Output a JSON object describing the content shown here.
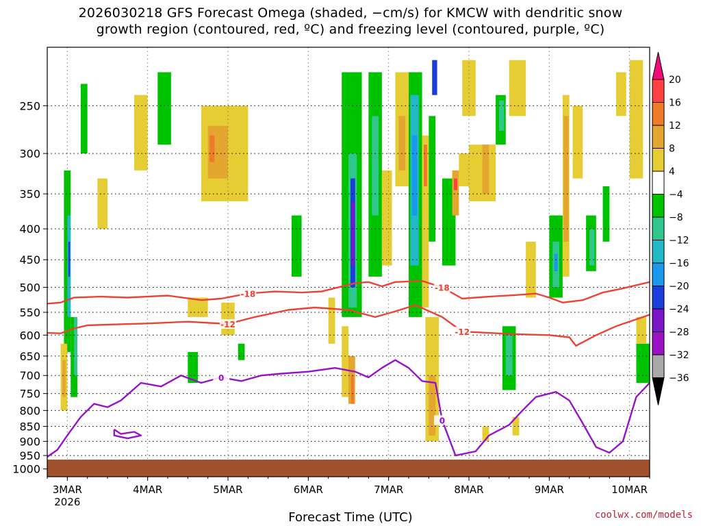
{
  "chart_data": {
    "type": "heatmap",
    "title_line1": "2026030218 GFS Forecast Omega (shaded, −cm/s) for KMCW with dendritic snow",
    "title_line2": "growth region (contoured, red, ºC) and freezing level (contoured, purple, ºC)",
    "xlabel": "Forecast Time (UTC)",
    "year_label": "2026",
    "credit": "coolwx.com/models",
    "x_ticks": [
      {
        "label": "3MAR",
        "t": 6
      },
      {
        "label": "4MAR",
        "t": 30
      },
      {
        "label": "5MAR",
        "t": 54
      },
      {
        "label": "6MAR",
        "t": 78
      },
      {
        "label": "7MAR",
        "t": 102
      },
      {
        "label": "8MAR",
        "t": 126
      },
      {
        "label": "9MAR",
        "t": 150
      },
      {
        "label": "10MAR",
        "t": 174
      }
    ],
    "x_range_hours": [
      0,
      180
    ],
    "y_ticks": [
      250,
      300,
      350,
      400,
      450,
      500,
      550,
      600,
      650,
      700,
      750,
      800,
      850,
      900,
      950,
      1000
    ],
    "y_range_hpa": [
      200,
      1030
    ],
    "surface_pressure_hpa": 965,
    "colorbar": {
      "labels": [
        "20",
        "16",
        "12",
        "8",
        "4",
        "−4",
        "−8",
        "−12",
        "−16",
        "−20",
        "−24",
        "−28",
        "−32",
        "−36"
      ],
      "colors": [
        "#ff4040",
        "#ef7a2a",
        "#e3a62f",
        "#e6cd34",
        "#ffffff",
        "#00c300",
        "#2fc78c",
        "#22b8c8",
        "#1a98ec",
        "#1c3cdc",
        "#7a16c8",
        "#9a12c4",
        "#a8a8a8"
      ],
      "top_color": "#f00a7a",
      "bottom_color": "#000000"
    },
    "contours": {
      "isotherm_minus18": {
        "label": "-18",
        "color": "#ec4236",
        "points": [
          [
            0,
            532
          ],
          [
            4,
            530
          ],
          [
            8,
            520
          ],
          [
            16,
            518
          ],
          [
            24,
            520
          ],
          [
            36,
            516
          ],
          [
            46,
            525
          ],
          [
            52,
            522
          ],
          [
            60,
            512
          ],
          [
            68,
            508
          ],
          [
            76,
            510
          ],
          [
            82,
            508
          ],
          [
            92,
            492
          ],
          [
            96,
            490
          ],
          [
            100,
            498
          ],
          [
            104,
            490
          ],
          [
            112,
            488
          ],
          [
            118,
            500
          ],
          [
            124,
            522
          ],
          [
            132,
            518
          ],
          [
            140,
            515
          ],
          [
            146,
            512
          ],
          [
            150,
            520
          ],
          [
            154,
            530
          ],
          [
            160,
            525
          ],
          [
            166,
            510
          ],
          [
            172,
            502
          ],
          [
            180,
            490
          ]
        ]
      },
      "isotherm_minus12": {
        "label": "-12",
        "color": "#ec4236",
        "points": [
          [
            0,
            595
          ],
          [
            4,
            596
          ],
          [
            8,
            585
          ],
          [
            12,
            578
          ],
          [
            20,
            576
          ],
          [
            30,
            574
          ],
          [
            42,
            570
          ],
          [
            54,
            575
          ],
          [
            62,
            560
          ],
          [
            72,
            545
          ],
          [
            80,
            540
          ],
          [
            90,
            545
          ],
          [
            98,
            560
          ],
          [
            104,
            548
          ],
          [
            110,
            535
          ],
          [
            118,
            560
          ],
          [
            124,
            592
          ],
          [
            132,
            595
          ],
          [
            140,
            598
          ],
          [
            150,
            600
          ],
          [
            156,
            605
          ],
          [
            158,
            625
          ],
          [
            164,
            600
          ],
          [
            170,
            580
          ],
          [
            176,
            565
          ],
          [
            180,
            555
          ]
        ]
      },
      "isotherm_zero": {
        "label": "0",
        "color": "#9712c6",
        "points": [
          [
            0,
            955
          ],
          [
            3,
            930
          ],
          [
            6,
            880
          ],
          [
            10,
            820
          ],
          [
            14,
            780
          ],
          [
            18,
            790
          ],
          [
            22,
            770
          ],
          [
            28,
            720
          ],
          [
            34,
            730
          ],
          [
            40,
            700
          ],
          [
            46,
            720
          ],
          [
            52,
            705
          ],
          [
            58,
            715
          ],
          [
            64,
            700
          ],
          [
            70,
            695
          ],
          [
            78,
            690
          ],
          [
            86,
            680
          ],
          [
            92,
            690
          ],
          [
            96,
            705
          ],
          [
            100,
            680
          ],
          [
            104,
            660
          ],
          [
            108,
            680
          ],
          [
            112,
            715
          ],
          [
            116,
            720
          ],
          [
            118,
            830
          ],
          [
            122,
            950
          ],
          [
            128,
            935
          ],
          [
            132,
            880
          ],
          [
            138,
            845
          ],
          [
            142,
            800
          ],
          [
            146,
            760
          ],
          [
            152,
            745
          ],
          [
            156,
            770
          ],
          [
            160,
            840
          ],
          [
            164,
            920
          ],
          [
            168,
            940
          ],
          [
            172,
            900
          ],
          [
            176,
            760
          ],
          [
            180,
            720
          ]
        ]
      },
      "isotherm_zero_loop": {
        "label": "",
        "color": "#9712c6",
        "points": [
          [
            20,
            860
          ],
          [
            22,
            875
          ],
          [
            26,
            868
          ],
          [
            28,
            880
          ],
          [
            24,
            890
          ],
          [
            20,
            880
          ],
          [
            20,
            860
          ]
        ]
      }
    },
    "omega_cells": [
      {
        "t0": 5,
        "t1": 7,
        "p0": 320,
        "p1": 640,
        "c": "#00c300"
      },
      {
        "t0": 6,
        "t1": 7,
        "p0": 380,
        "p1": 560,
        "c": "#22b8c8"
      },
      {
        "t0": 6.3,
        "t1": 6.8,
        "p0": 420,
        "p1": 480,
        "c": "#1c3cdc"
      },
      {
        "t0": 7,
        "t1": 9,
        "p0": 560,
        "p1": 760,
        "c": "#00c300"
      },
      {
        "t0": 8,
        "t1": 9,
        "p0": 560,
        "p1": 700,
        "c": "#2fc78c"
      },
      {
        "t0": 4,
        "t1": 6,
        "p0": 620,
        "p1": 800,
        "c": "#e6cd34"
      },
      {
        "t0": 4.5,
        "t1": 5.5,
        "p0": 660,
        "p1": 760,
        "c": "#e3a62f"
      },
      {
        "t0": 15,
        "t1": 18,
        "p0": 330,
        "p1": 400,
        "c": "#e6cd34"
      },
      {
        "t0": 10,
        "t1": 12,
        "p0": 230,
        "p1": 300,
        "c": "#00c300"
      },
      {
        "t0": 26,
        "t1": 30,
        "p0": 240,
        "p1": 320,
        "c": "#e6cd34"
      },
      {
        "t0": 33,
        "t1": 37,
        "p0": 220,
        "p1": 290,
        "c": "#00c300"
      },
      {
        "t0": 46,
        "t1": 60,
        "p0": 250,
        "p1": 360,
        "c": "#e6cd34"
      },
      {
        "t0": 48,
        "t1": 54,
        "p0": 270,
        "p1": 330,
        "c": "#e3a62f"
      },
      {
        "t0": 48.5,
        "t1": 50,
        "p0": 280,
        "p1": 310,
        "c": "#ef7a2a"
      },
      {
        "t0": 42,
        "t1": 45,
        "p0": 640,
        "p1": 720,
        "c": "#00c300"
      },
      {
        "t0": 52,
        "t1": 56,
        "p0": 530,
        "p1": 600,
        "c": "#e6cd34"
      },
      {
        "t0": 42,
        "t1": 48,
        "p0": 520,
        "p1": 560,
        "c": "#e6cd34"
      },
      {
        "t0": 73,
        "t1": 76,
        "p0": 380,
        "p1": 480,
        "c": "#00c300"
      },
      {
        "t0": 84,
        "t1": 86,
        "p0": 520,
        "p1": 620,
        "c": "#e6cd34"
      },
      {
        "t0": 88,
        "t1": 94,
        "p0": 220,
        "p1": 560,
        "c": "#00c300"
      },
      {
        "t0": 90,
        "t1": 92.5,
        "p0": 300,
        "p1": 540,
        "c": "#2fc78c"
      },
      {
        "t0": 90.6,
        "t1": 92,
        "p0": 330,
        "p1": 500,
        "c": "#1c3cdc"
      },
      {
        "t0": 90.9,
        "t1": 91.8,
        "p0": 360,
        "p1": 460,
        "c": "#7a16c8"
      },
      {
        "t0": 88,
        "t1": 90,
        "p0": 580,
        "p1": 760,
        "c": "#e6cd34"
      },
      {
        "t0": 90,
        "t1": 92,
        "p0": 650,
        "p1": 780,
        "c": "#e3a62f"
      },
      {
        "t0": 90.8,
        "t1": 91.6,
        "p0": 700,
        "p1": 780,
        "c": "#ef7a2a"
      },
      {
        "t0": 96,
        "t1": 100,
        "p0": 220,
        "p1": 480,
        "c": "#00c300"
      },
      {
        "t0": 97,
        "t1": 99,
        "p0": 260,
        "p1": 380,
        "c": "#2fc78c"
      },
      {
        "t0": 100,
        "t1": 103,
        "p0": 320,
        "p1": 460,
        "c": "#e6cd34"
      },
      {
        "t0": 104,
        "t1": 108,
        "p0": 220,
        "p1": 340,
        "c": "#e6cd34"
      },
      {
        "t0": 105,
        "t1": 107,
        "p0": 260,
        "p1": 320,
        "c": "#e3a62f"
      },
      {
        "t0": 108,
        "t1": 112,
        "p0": 220,
        "p1": 560,
        "c": "#00c300"
      },
      {
        "t0": 108.5,
        "t1": 111,
        "p0": 240,
        "p1": 460,
        "c": "#22b8c8"
      },
      {
        "t0": 109,
        "t1": 110.5,
        "p0": 280,
        "p1": 380,
        "c": "#1a98ec"
      },
      {
        "t0": 112,
        "t1": 114,
        "p0": 280,
        "p1": 540,
        "c": "#e6cd34"
      },
      {
        "t0": 112.5,
        "t1": 113.5,
        "p0": 290,
        "p1": 340,
        "c": "#ef7a2a"
      },
      {
        "t0": 114,
        "t1": 116,
        "p0": 260,
        "p1": 420,
        "c": "#00c300"
      },
      {
        "t0": 115,
        "t1": 116.5,
        "p0": 210,
        "p1": 240,
        "c": "#1c3cdc"
      },
      {
        "t0": 113,
        "t1": 117,
        "p0": 560,
        "p1": 900,
        "c": "#e6cd34"
      },
      {
        "t0": 114,
        "t1": 116,
        "p0": 700,
        "p1": 880,
        "c": "#e3a62f"
      },
      {
        "t0": 118,
        "t1": 122,
        "p0": 330,
        "p1": 460,
        "c": "#00c300"
      },
      {
        "t0": 121,
        "t1": 123,
        "p0": 320,
        "p1": 380,
        "c": "#e3a62f"
      },
      {
        "t0": 121.5,
        "t1": 122.5,
        "p0": 330,
        "p1": 345,
        "c": "#ff4040"
      },
      {
        "t0": 123,
        "t1": 126,
        "p0": 300,
        "p1": 340,
        "c": "#e6cd34"
      },
      {
        "t0": 124,
        "t1": 128,
        "p0": 210,
        "p1": 260,
        "c": "#e6cd34"
      },
      {
        "t0": 126,
        "t1": 134,
        "p0": 290,
        "p1": 360,
        "c": "#e6cd34"
      },
      {
        "t0": 130,
        "t1": 132,
        "p0": 290,
        "p1": 350,
        "c": "#e3a62f"
      },
      {
        "t0": 134,
        "t1": 137,
        "p0": 240,
        "p1": 290,
        "c": "#00c300"
      },
      {
        "t0": 135,
        "t1": 136.5,
        "p0": 245,
        "p1": 275,
        "c": "#2fc78c"
      },
      {
        "t0": 138,
        "t1": 143,
        "p0": 210,
        "p1": 260,
        "c": "#e6cd34"
      },
      {
        "t0": 136,
        "t1": 140,
        "p0": 580,
        "p1": 740,
        "c": "#00c300"
      },
      {
        "t0": 137,
        "t1": 139,
        "p0": 600,
        "p1": 700,
        "c": "#2fc78c"
      },
      {
        "t0": 143,
        "t1": 146,
        "p0": 420,
        "p1": 520,
        "c": "#e6cd34"
      },
      {
        "t0": 150,
        "t1": 154,
        "p0": 380,
        "p1": 520,
        "c": "#00c300"
      },
      {
        "t0": 151,
        "t1": 153,
        "p0": 420,
        "p1": 500,
        "c": "#2fc78c"
      },
      {
        "t0": 151.5,
        "t1": 152.5,
        "p0": 440,
        "p1": 470,
        "c": "#1a98ec"
      },
      {
        "t0": 154,
        "t1": 156,
        "p0": 240,
        "p1": 480,
        "c": "#e6cd34"
      },
      {
        "t0": 154.3,
        "t1": 155.8,
        "p0": 260,
        "p1": 420,
        "c": "#e3a62f"
      },
      {
        "t0": 157,
        "t1": 160,
        "p0": 250,
        "p1": 330,
        "c": "#e6cd34"
      },
      {
        "t0": 161,
        "t1": 164,
        "p0": 380,
        "p1": 470,
        "c": "#00c300"
      },
      {
        "t0": 162,
        "t1": 163.5,
        "p0": 400,
        "p1": 460,
        "c": "#2fc78c"
      },
      {
        "t0": 166,
        "t1": 168,
        "p0": 340,
        "p1": 420,
        "c": "#00c300"
      },
      {
        "t0": 170,
        "t1": 173,
        "p0": 220,
        "p1": 260,
        "c": "#e6cd34"
      },
      {
        "t0": 174,
        "t1": 178,
        "p0": 210,
        "p1": 330,
        "c": "#e6cd34"
      },
      {
        "t0": 176,
        "t1": 180,
        "p0": 620,
        "p1": 720,
        "c": "#00c300"
      },
      {
        "t0": 176,
        "t1": 179,
        "p0": 560,
        "p1": 620,
        "c": "#e6cd34"
      },
      {
        "t0": 57,
        "t1": 59,
        "p0": 620,
        "p1": 660,
        "c": "#00c300"
      },
      {
        "t0": 130,
        "t1": 132,
        "p0": 850,
        "p1": 900,
        "c": "#e6cd34"
      },
      {
        "t0": 139,
        "t1": 141,
        "p0": 820,
        "p1": 880,
        "c": "#e6cd34"
      }
    ]
  }
}
